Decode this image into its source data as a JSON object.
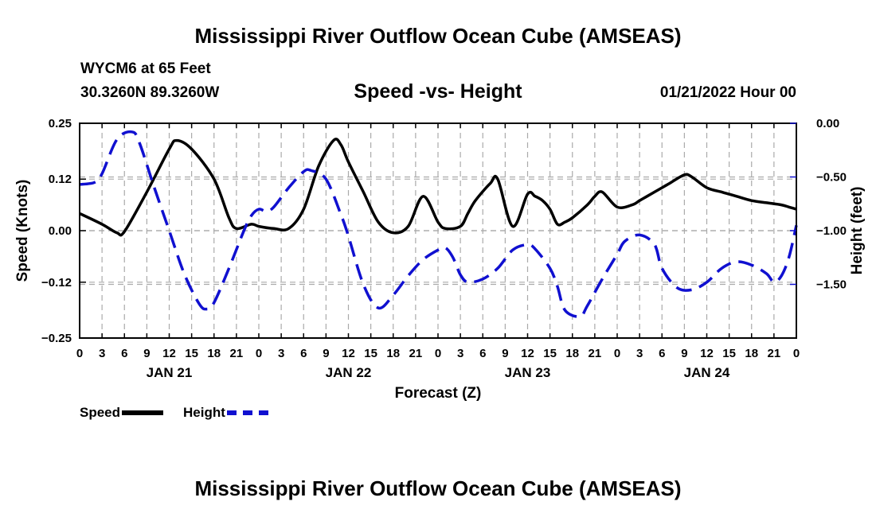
{
  "header": {
    "title": "Mississippi River Outflow Ocean Cube (AMSEAS)",
    "station": "WYCM6 at 65 Feet",
    "coords": "30.3260N  89.3260W",
    "chart_title": "Speed -vs- Height",
    "run_time": "01/21/2022 Hour 00"
  },
  "footer": {
    "title": "Mississippi River Outflow Ocean Cube (AMSEAS)"
  },
  "legend": {
    "speed_label": "Speed",
    "height_label": "Height"
  },
  "colors": {
    "speed": "#000000",
    "height": "#1010d0",
    "grid": "#aaaaaa"
  },
  "chart_data": {
    "type": "line",
    "title": "Speed -vs- Height",
    "xlabel": "Forecast (Z)",
    "ylabel_left": "Speed (Knots)",
    "ylabel_right": "Height (feet)",
    "xlim_hours": [
      0,
      96
    ],
    "ylim_left": [
      -0.25,
      0.25
    ],
    "ylim_right": [
      -2.0,
      0.0
    ],
    "left_ticks": [
      0.25,
      0.12,
      0.0,
      -0.12,
      -0.25
    ],
    "left_tick_labels": [
      "0.25",
      "0.12",
      "0.00",
      "−0.12",
      "−0.25"
    ],
    "right_ticks": [
      0.0,
      -0.5,
      -1.0,
      -1.5
    ],
    "right_tick_labels": [
      "0.00",
      "−0.50",
      "−1.00",
      "−1.50"
    ],
    "x_tick_labels": [
      "0",
      "3",
      "6",
      "9",
      "12",
      "15",
      "18",
      "21",
      "0",
      "3",
      "6",
      "9",
      "12",
      "15",
      "18",
      "21",
      "0",
      "3",
      "6",
      "9",
      "12",
      "15",
      "18",
      "21",
      "0",
      "3",
      "6",
      "9",
      "12",
      "15",
      "18",
      "21",
      "0"
    ],
    "date_labels": [
      {
        "label": "JAN 21",
        "hour": 12
      },
      {
        "label": "JAN 22",
        "hour": 36
      },
      {
        "label": "JAN 23",
        "hour": 60
      },
      {
        "label": "JAN 24",
        "hour": 84
      }
    ],
    "grid": true,
    "legend_position": "bottom-left",
    "series": [
      {
        "name": "Speed",
        "axis": "left",
        "style": "solid",
        "x": [
          0,
          3,
          5,
          6,
          9,
          12,
          13,
          15,
          18,
          20,
          21,
          23,
          24,
          26,
          28,
          30,
          32,
          34,
          35,
          36,
          38,
          40,
          42,
          44,
          46,
          48,
          49,
          51,
          52,
          53,
          55,
          56,
          58,
          60,
          61,
          62,
          63,
          64,
          65,
          66,
          68,
          69,
          70,
          72,
          74,
          75,
          76,
          78,
          79,
          81,
          82,
          84,
          86,
          87,
          88,
          90,
          92,
          94,
          95,
          96
        ],
        "y": [
          0.04,
          0.015,
          -0.005,
          -0.002,
          0.09,
          0.19,
          0.21,
          0.19,
          0.12,
          0.03,
          0.005,
          0.015,
          0.01,
          0.005,
          0.005,
          0.05,
          0.15,
          0.21,
          0.2,
          0.16,
          0.09,
          0.02,
          -0.005,
          0.01,
          0.08,
          0.02,
          0.005,
          0.01,
          0.04,
          0.07,
          0.11,
          0.12,
          0.01,
          0.085,
          0.08,
          0.07,
          0.05,
          0.015,
          0.02,
          0.03,
          0.06,
          0.08,
          0.09,
          0.055,
          0.06,
          0.07,
          0.08,
          0.1,
          0.11,
          0.13,
          0.125,
          0.1,
          0.09,
          0.085,
          0.08,
          0.07,
          0.065,
          0.06,
          0.055,
          0.05
        ]
      },
      {
        "name": "Height",
        "axis": "right",
        "style": "dashed",
        "x": [
          0,
          2,
          3,
          5,
          7,
          8,
          10,
          12,
          14,
          16,
          17,
          18,
          20,
          22,
          23,
          24,
          25,
          26,
          28,
          30,
          31,
          33,
          35,
          36,
          38,
          40,
          42,
          44,
          46,
          48,
          49,
          50,
          51,
          52,
          54,
          56,
          58,
          60,
          61,
          63,
          64,
          65,
          67,
          68,
          70,
          72,
          73,
          75,
          77,
          78,
          80,
          82,
          84,
          86,
          88,
          90,
          92,
          93,
          94,
          95,
          96
        ],
        "y": [
          -0.57,
          -0.55,
          -0.47,
          -0.15,
          -0.08,
          -0.18,
          -0.6,
          -1.0,
          -1.4,
          -1.68,
          -1.73,
          -1.67,
          -1.35,
          -1.0,
          -0.86,
          -0.8,
          -0.82,
          -0.78,
          -0.6,
          -0.45,
          -0.44,
          -0.52,
          -0.85,
          -1.05,
          -1.5,
          -1.72,
          -1.6,
          -1.42,
          -1.27,
          -1.18,
          -1.16,
          -1.25,
          -1.41,
          -1.48,
          -1.45,
          -1.35,
          -1.18,
          -1.13,
          -1.17,
          -1.35,
          -1.52,
          -1.74,
          -1.8,
          -1.7,
          -1.45,
          -1.22,
          -1.1,
          -1.04,
          -1.13,
          -1.35,
          -1.53,
          -1.55,
          -1.48,
          -1.35,
          -1.29,
          -1.32,
          -1.4,
          -1.48,
          -1.42,
          -1.25,
          -0.95
        ]
      }
    ]
  }
}
